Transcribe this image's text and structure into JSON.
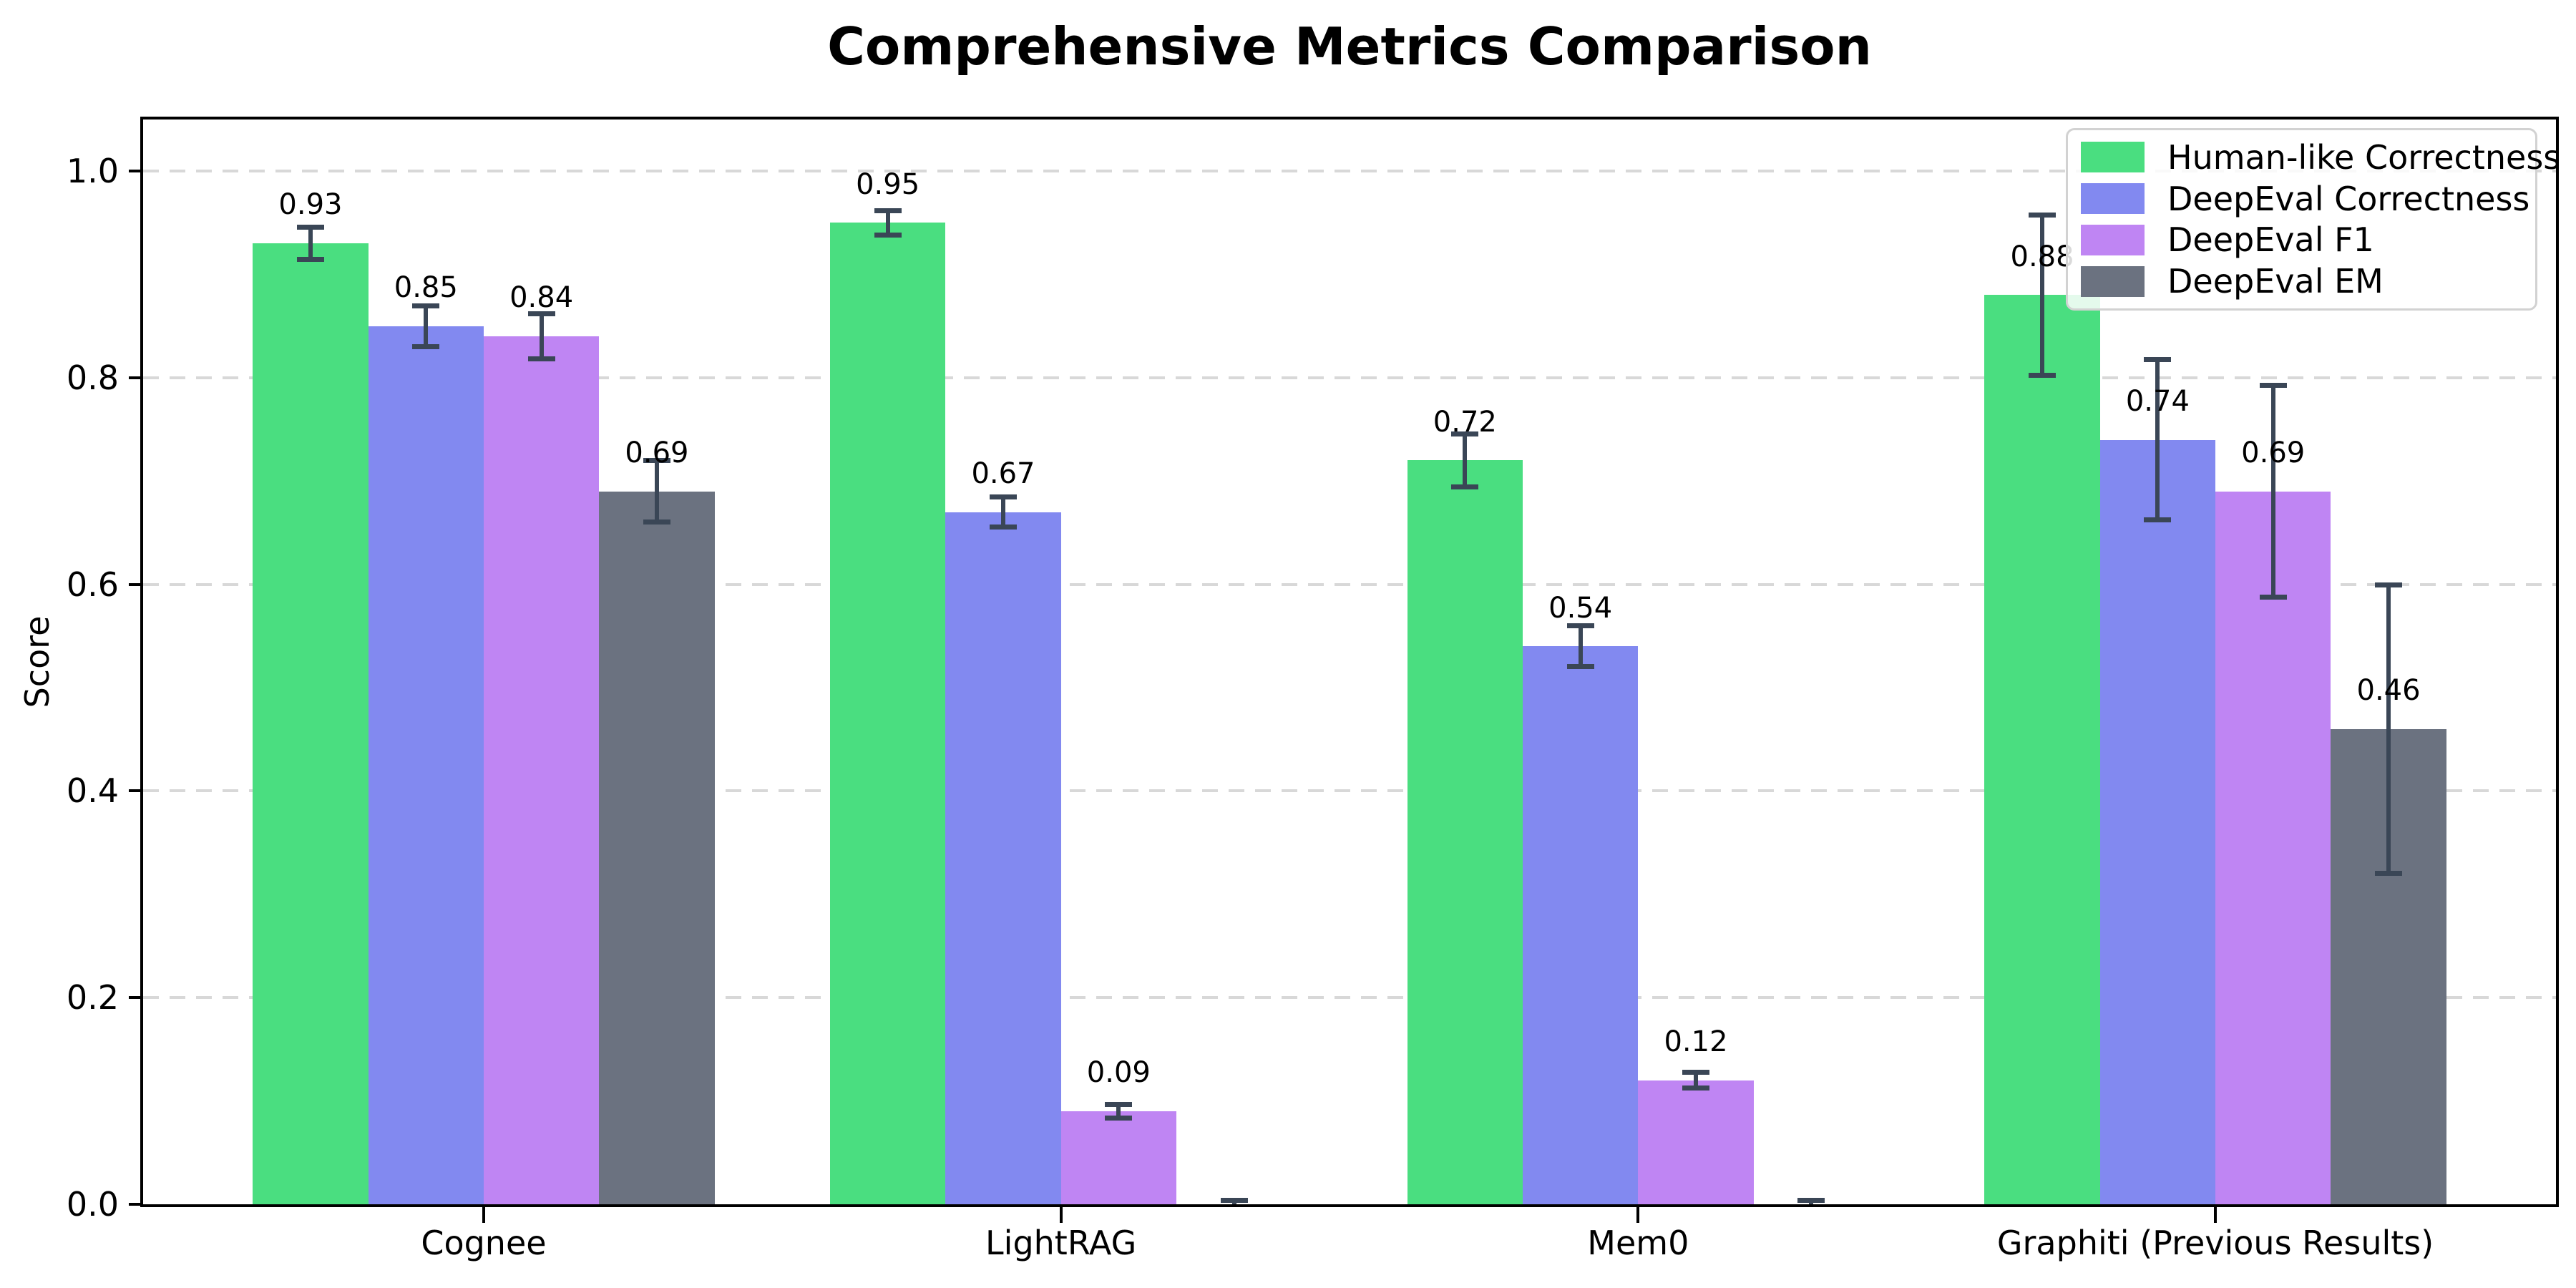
{
  "chart_data": {
    "type": "bar",
    "title": "Comprehensive Metrics Comparison",
    "xlabel": "",
    "ylabel": "Score",
    "categories": [
      "Cognee",
      "LightRAG",
      "Mem0",
      "Graphiti (Previous Results)"
    ],
    "series": [
      {
        "name": "Human-like Correctness",
        "color": "#4ade80",
        "values": [
          0.93,
          0.95,
          0.72,
          0.88
        ],
        "errors": [
          0.016,
          0.012,
          0.026,
          0.078
        ],
        "labels": [
          "0.93",
          "0.95",
          "0.72",
          "0.88"
        ]
      },
      {
        "name": "DeepEval Correctness",
        "color": "#8289f0",
        "values": [
          0.85,
          0.67,
          0.54,
          0.74
        ],
        "errors": [
          0.02,
          0.015,
          0.02,
          0.078
        ],
        "labels": [
          "0.85",
          "0.67",
          "0.54",
          "0.74"
        ]
      },
      {
        "name": "DeepEval F1",
        "color": "#bf85f3",
        "values": [
          0.84,
          0.09,
          0.12,
          0.69
        ],
        "errors": [
          0.022,
          0.007,
          0.008,
          0.103
        ],
        "labels": [
          "0.84",
          "0.09",
          "0.12",
          "0.69"
        ]
      },
      {
        "name": "DeepEval EM",
        "color": "#6b7280",
        "values": [
          0.69,
          0.0,
          0.0,
          0.46
        ],
        "errors": [
          0.03,
          0.004,
          0.004,
          0.14
        ],
        "labels": [
          "0.69",
          "",
          "",
          "0.46"
        ]
      }
    ],
    "yticks": [
      0.0,
      0.2,
      0.4,
      0.6,
      0.8,
      1.0
    ],
    "ytick_labels": [
      "0.0",
      "0.2",
      "0.4",
      "0.6",
      "0.8",
      "1.0"
    ],
    "ylim": [
      0,
      1.05
    ],
    "bar_width": 0.2,
    "grid": "horizontal-dashed",
    "grid_color": "#d8d8d8",
    "error_color": "#3a4656",
    "legend_position": "upper-right"
  }
}
